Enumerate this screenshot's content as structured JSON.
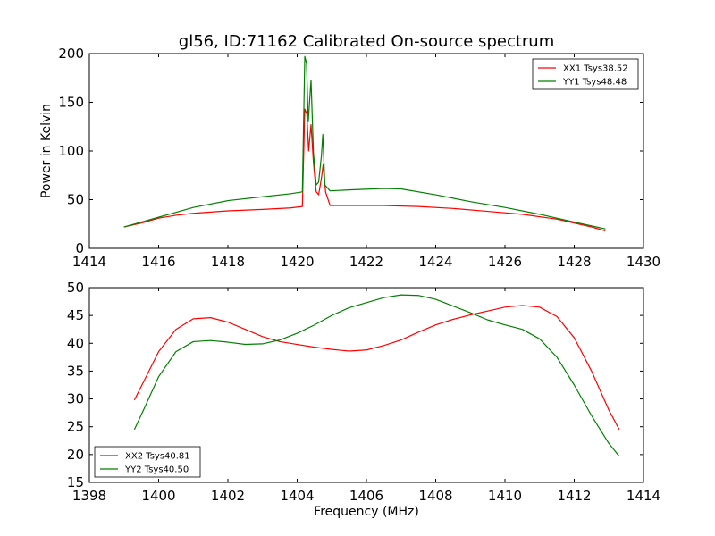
{
  "figure": {
    "title": "gl56, ID:71162 Calibrated On-source spectrum"
  },
  "colors": {
    "xx": "#ff0000",
    "yy": "#008000",
    "axes": "#000000",
    "background": "#ffffff"
  },
  "chart_data": [
    {
      "type": "line",
      "title": "gl56, ID:71162 Calibrated On-source spectrum",
      "xlabel": "",
      "ylabel": "Power in Kelvin",
      "xlim": [
        1414,
        1430
      ],
      "ylim": [
        0,
        200
      ],
      "xticks": [
        1414,
        1416,
        1418,
        1420,
        1422,
        1424,
        1426,
        1428,
        1430
      ],
      "yticks": [
        0,
        50,
        100,
        150,
        200
      ],
      "grid": false,
      "legend_position": "top-right",
      "series": [
        {
          "name": "XX1 Tsys38.52",
          "color": "#ff0000",
          "x": [
            1415.0,
            1415.5,
            1416.0,
            1416.5,
            1417.0,
            1418.0,
            1419.0,
            1419.8,
            1420.15,
            1420.22,
            1420.28,
            1420.33,
            1420.4,
            1420.47,
            1420.55,
            1420.62,
            1420.7,
            1420.75,
            1420.82,
            1420.95,
            1421.5,
            1422.5,
            1423.5,
            1424.5,
            1425.5,
            1426.5,
            1427.5,
            1428.5,
            1428.9
          ],
          "y": [
            22,
            26,
            31,
            34,
            36,
            38.5,
            40,
            41.5,
            43,
            143,
            138,
            100,
            127,
            88,
            58,
            55,
            72,
            86,
            58,
            44,
            44,
            44,
            43,
            41,
            38,
            35,
            30,
            22,
            18
          ]
        },
        {
          "name": "YY1 Tsys48.48",
          "color": "#008000",
          "x": [
            1415.0,
            1415.5,
            1416.0,
            1416.5,
            1417.0,
            1418.0,
            1419.0,
            1419.8,
            1420.15,
            1420.22,
            1420.27,
            1420.32,
            1420.4,
            1420.47,
            1420.55,
            1420.62,
            1420.7,
            1420.74,
            1420.8,
            1420.95,
            1421.5,
            1422.5,
            1423.0,
            1424.0,
            1425.0,
            1426.0,
            1427.0,
            1428.0,
            1428.9
          ],
          "y": [
            22,
            27,
            32,
            37,
            42,
            49,
            53,
            56,
            58,
            197,
            190,
            130,
            173,
            98,
            65,
            68,
            95,
            117,
            65,
            59,
            60,
            61.5,
            61,
            55,
            48,
            42,
            35,
            27,
            20
          ]
        }
      ]
    },
    {
      "type": "line",
      "title": "",
      "xlabel": "Frequency (MHz)",
      "ylabel": "",
      "xlim": [
        1398,
        1414
      ],
      "ylim": [
        15,
        50
      ],
      "xticks": [
        1398,
        1400,
        1402,
        1404,
        1406,
        1408,
        1410,
        1412,
        1414
      ],
      "yticks": [
        15,
        20,
        25,
        30,
        35,
        40,
        45,
        50
      ],
      "grid": false,
      "legend_position": "bottom-left",
      "series": [
        {
          "name": "XX2 Tsys40.81",
          "color": "#ff0000",
          "x": [
            1399.3,
            1399.6,
            1400.0,
            1400.5,
            1401.0,
            1401.5,
            1402.0,
            1402.5,
            1403.0,
            1403.5,
            1404.0,
            1404.5,
            1405.0,
            1405.5,
            1406.0,
            1406.5,
            1407.0,
            1407.5,
            1408.0,
            1408.5,
            1409.0,
            1409.5,
            1410.0,
            1410.5,
            1411.0,
            1411.5,
            1412.0,
            1412.5,
            1413.0,
            1413.3
          ],
          "y": [
            29.8,
            33.5,
            38.5,
            42.5,
            44.4,
            44.6,
            43.8,
            42.5,
            41.2,
            40.3,
            39.8,
            39.3,
            38.9,
            38.6,
            38.8,
            39.6,
            40.6,
            42.0,
            43.3,
            44.3,
            45.1,
            45.8,
            46.5,
            46.8,
            46.5,
            44.8,
            41.0,
            35.0,
            28.0,
            24.5
          ]
        },
        {
          "name": "YY2 Tsys40.50",
          "color": "#008000",
          "x": [
            1399.3,
            1399.6,
            1400.0,
            1400.5,
            1401.0,
            1401.5,
            1402.0,
            1402.5,
            1403.0,
            1403.5,
            1404.0,
            1404.5,
            1405.0,
            1405.5,
            1406.0,
            1406.5,
            1407.0,
            1407.5,
            1408.0,
            1408.5,
            1409.0,
            1409.5,
            1410.0,
            1410.5,
            1411.0,
            1411.5,
            1412.0,
            1412.5,
            1413.0,
            1413.3
          ],
          "y": [
            24.5,
            28.5,
            34.0,
            38.5,
            40.3,
            40.5,
            40.2,
            39.8,
            39.9,
            40.6,
            41.8,
            43.3,
            45.0,
            46.4,
            47.3,
            48.2,
            48.7,
            48.6,
            47.9,
            46.7,
            45.5,
            44.2,
            43.3,
            42.5,
            40.8,
            37.5,
            32.5,
            27.0,
            22.0,
            19.7
          ]
        }
      ]
    }
  ]
}
